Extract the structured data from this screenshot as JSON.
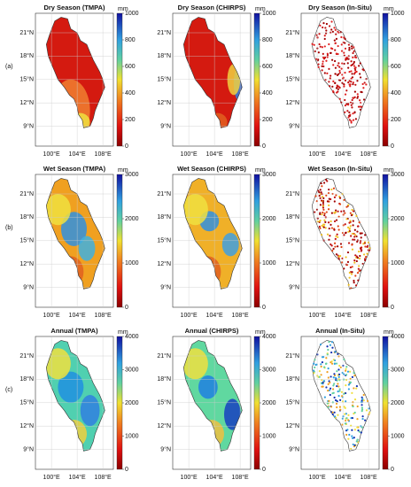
{
  "rows": [
    {
      "label": "(a)",
      "colorbar": {
        "unit": "mm",
        "ticks": [
          0,
          200,
          400,
          600,
          800,
          1000
        ]
      },
      "panels": [
        {
          "title": "Dry Season (TMPA)"
        },
        {
          "title": "Dry Season (CHIRPS)"
        },
        {
          "title": "Dry Season (In-Situ)"
        }
      ]
    },
    {
      "label": "(b)",
      "colorbar": {
        "unit": "mm",
        "ticks": [
          0,
          1000,
          2000,
          3000
        ]
      },
      "panels": [
        {
          "title": "Wet Season (TMPA)"
        },
        {
          "title": "Wet Season (CHIRPS)"
        },
        {
          "title": "Wet Season (In-Situ)"
        }
      ]
    },
    {
      "label": "(c)",
      "colorbar": {
        "unit": "mm",
        "ticks": [
          0,
          1000,
          2000,
          3000,
          4000
        ]
      },
      "panels": [
        {
          "title": "Annual (TMPA)"
        },
        {
          "title": "Annual (CHIRPS)"
        },
        {
          "title": "Annual (In-Situ)"
        }
      ]
    }
  ],
  "lat_ticks": [
    "21°N",
    "18°N",
    "15°N",
    "12°N",
    "9°N"
  ],
  "lon_ticks": [
    "100°E",
    "104°E",
    "108°E"
  ]
}
